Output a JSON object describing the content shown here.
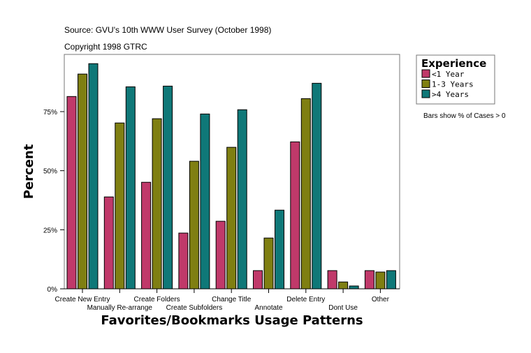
{
  "chart_data": {
    "type": "bar",
    "source": "Source: GVU's 10th WWW User Survey (October 1998)",
    "copyright": "Copyright 1998 GTRC",
    "xlabel": "Favorites/Bookmarks Usage Patterns",
    "ylabel": "Percent",
    "ylim": [
      0,
      100
    ],
    "yticks": [
      0,
      25,
      50,
      75
    ],
    "ytick_labels": [
      "0%",
      "25%",
      "50%",
      "75%"
    ],
    "categories": [
      "Create New Entry",
      "Manually Re-arrange",
      "Create Folders",
      "Create Subfolders",
      "Change Title",
      "Annotate",
      "Delete Entry",
      "Dont Use",
      "Other"
    ],
    "legend_title": "Experience",
    "legend_position": "right",
    "note": "Bars show % of Cases > 0",
    "series": [
      {
        "name": "<1 Year",
        "color": "#c0396a",
        "values": [
          81.4,
          38.9,
          45.1,
          23.6,
          28.6,
          7.7,
          62.2,
          7.7,
          7.7
        ]
      },
      {
        "name": "1-3 Years",
        "color": "#7f7f12",
        "values": [
          90.9,
          70.2,
          72.0,
          54.0,
          59.9,
          21.5,
          80.5,
          2.9,
          7.1
        ]
      },
      {
        "name": ">4 Years",
        "color": "#0f7878",
        "values": [
          95.3,
          85.5,
          85.8,
          74.0,
          75.8,
          33.3,
          87.0,
          1.2,
          7.7
        ]
      }
    ],
    "grid": false
  }
}
